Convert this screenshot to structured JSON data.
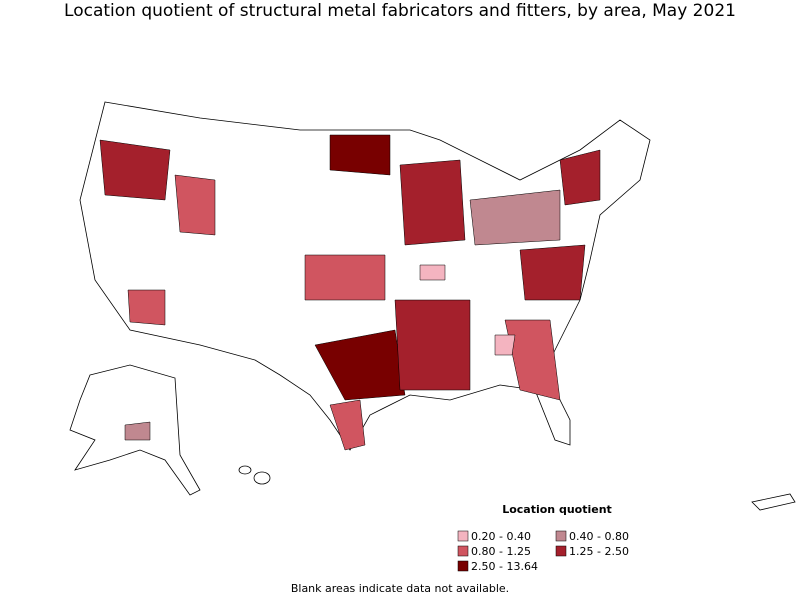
{
  "title": "Location quotient of structural metal fabricators and fitters, by area, May 2021",
  "legend": {
    "title": "Location quotient",
    "items": [
      {
        "label": "0.20 - 0.40",
        "color": "#f4b4c0"
      },
      {
        "label": "0.40 - 0.80",
        "color": "#c08890"
      },
      {
        "label": "0.80 - 1.25",
        "color": "#d05560"
      },
      {
        "label": "1.25 - 2.50",
        "color": "#a4202c"
      },
      {
        "label": "2.50 - 13.64",
        "color": "#780000"
      }
    ]
  },
  "note": "Blank areas indicate data not available."
}
